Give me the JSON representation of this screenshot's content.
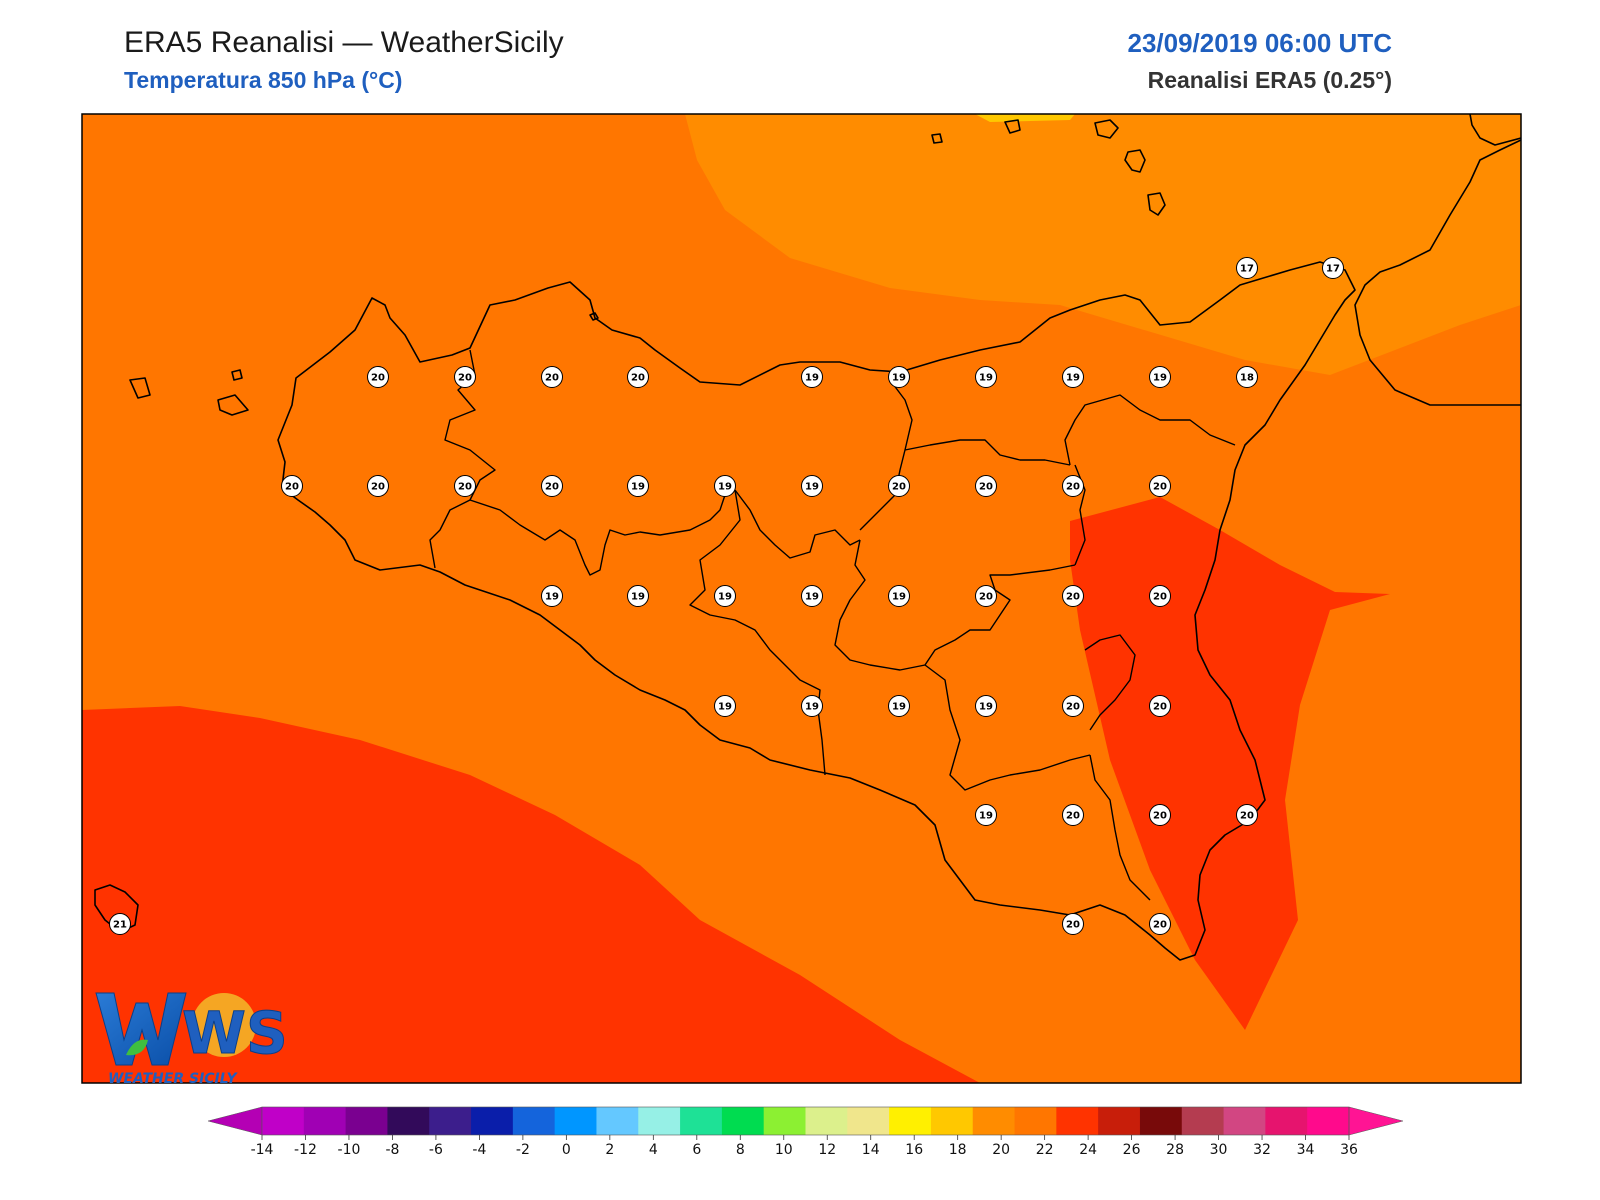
{
  "header": {
    "title": "ERA5 Reanalisi — WeatherSicily",
    "subtitle": "Temperatura 850 hPa (°C)",
    "valid_time": "23/09/2019 06:00 UTC",
    "model_info": "Reanalisi ERA5 (0.25°)"
  },
  "map": {
    "region": "Sicilia",
    "variable": "Temperatura 850 hPa",
    "unit": "°C",
    "shading_bands": [
      {
        "range": "16-18",
        "color": "#ff8c00"
      },
      {
        "range": "18-20",
        "color": "#ff7600"
      },
      {
        "range": "20-22",
        "color": "#ff3300"
      },
      {
        "range": "22-24",
        "color": "#e02a00"
      }
    ],
    "point_values": [
      "17",
      "17",
      "20",
      "20",
      "20",
      "20",
      "19",
      "19",
      "19",
      "19",
      "19",
      "18",
      "20",
      "20",
      "20",
      "20",
      "19",
      "19",
      "19",
      "20",
      "20",
      "20",
      "20",
      "19",
      "19",
      "19",
      "19",
      "19",
      "20",
      "20",
      "20",
      "19",
      "19",
      "19",
      "19",
      "20",
      "20",
      "19",
      "20",
      "20",
      "20",
      "20",
      "20",
      "21"
    ],
    "logo": {
      "text": "WS",
      "caption": "WEATHER SICILY"
    }
  },
  "colorbar": {
    "ticks": [
      "-14",
      "-12",
      "-10",
      "-8",
      "-6",
      "-4",
      "-2",
      "0",
      "2",
      "4",
      "6",
      "8",
      "10",
      "12",
      "14",
      "16",
      "18",
      "20",
      "22",
      "24",
      "26",
      "28",
      "30",
      "32",
      "34",
      "36"
    ],
    "colors": [
      "#c000c8",
      "#a000b4",
      "#7a0090",
      "#320a5a",
      "#3c1e8c",
      "#0a1eaa",
      "#1464dc",
      "#0096ff",
      "#64c8ff",
      "#96f0e6",
      "#1ee196",
      "#00dc50",
      "#8cf032",
      "#dcf08c",
      "#f0e68c",
      "#fff000",
      "#ffc800",
      "#ff8c00",
      "#ff7600",
      "#ff3300",
      "#c81e0a",
      "#780a0a",
      "#b43c50",
      "#d24682",
      "#e6146e",
      "#ff0a8c"
    ],
    "under_color": "#b400b4",
    "over_color": "#ff1494"
  }
}
